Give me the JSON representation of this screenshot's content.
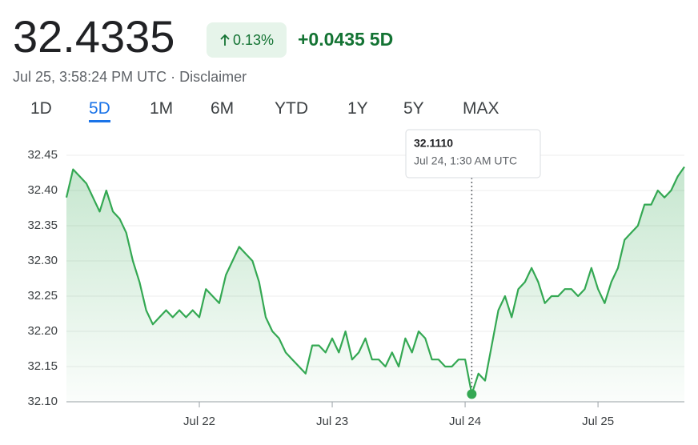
{
  "header": {
    "price": "32.4335",
    "change_pct": "0.13%",
    "change": "+0.0435",
    "period": "5D",
    "timestamp": "Jul 25, 3:58:24 PM UTC",
    "disclaimer": "Disclaimer"
  },
  "ranges": [
    "1D",
    "5D",
    "1M",
    "6M",
    "YTD",
    "1Y",
    "5Y",
    "MAX"
  ],
  "chart_data": {
    "type": "line",
    "series": [
      {
        "color": "#34a853",
        "values": [
          32.39,
          32.43,
          32.42,
          32.41,
          32.39,
          32.37,
          32.4,
          32.37,
          32.36,
          32.34,
          32.3,
          32.27,
          32.23,
          32.21,
          32.22,
          32.23,
          32.22,
          32.23,
          32.22,
          32.23,
          32.22,
          32.26,
          32.25,
          32.24,
          32.28,
          32.3,
          32.32,
          32.31,
          32.3,
          32.27,
          32.22,
          32.2,
          32.19,
          32.17,
          32.16,
          32.15,
          32.14,
          32.18,
          32.18,
          32.17,
          32.19,
          32.17,
          32.2,
          32.16,
          32.17,
          32.19,
          32.16,
          32.16,
          32.15,
          32.17,
          32.15,
          32.19,
          32.17,
          32.2,
          32.19,
          32.16,
          32.16,
          32.15,
          32.15,
          32.16,
          32.16,
          32.111,
          32.14,
          32.13,
          32.18,
          32.23,
          32.25,
          32.22,
          32.26,
          32.27,
          32.29,
          32.27,
          32.24,
          32.25,
          32.25,
          32.26,
          32.26,
          32.25,
          32.26,
          32.29,
          32.26,
          32.24,
          32.27,
          32.29,
          32.33,
          32.34,
          32.35,
          32.38,
          32.38,
          32.4,
          32.39,
          32.4,
          32.42,
          32.4335
        ]
      }
    ],
    "xlim": [
      0,
      93
    ],
    "xticks": [
      {
        "value": 20,
        "label": "Jul 22"
      },
      {
        "value": 40,
        "label": "Jul 23"
      },
      {
        "value": 60,
        "label": "Jul 24"
      },
      {
        "value": 80,
        "label": "Jul 25"
      }
    ],
    "ylim": [
      32.1,
      32.45
    ],
    "yticks": [
      {
        "value": 32.1,
        "label": "32.10"
      },
      32.15,
      {
        "value": 32.2,
        "label": "32.20"
      },
      32.25,
      {
        "value": 32.3,
        "label": "32.30"
      },
      32.35,
      {
        "value": 32.4,
        "label": "32.40"
      },
      32.45
    ],
    "grid": true,
    "tooltip": {
      "index": 61,
      "label": "32.1110",
      "time": "Jul 24, 1:30 AM UTC"
    }
  }
}
